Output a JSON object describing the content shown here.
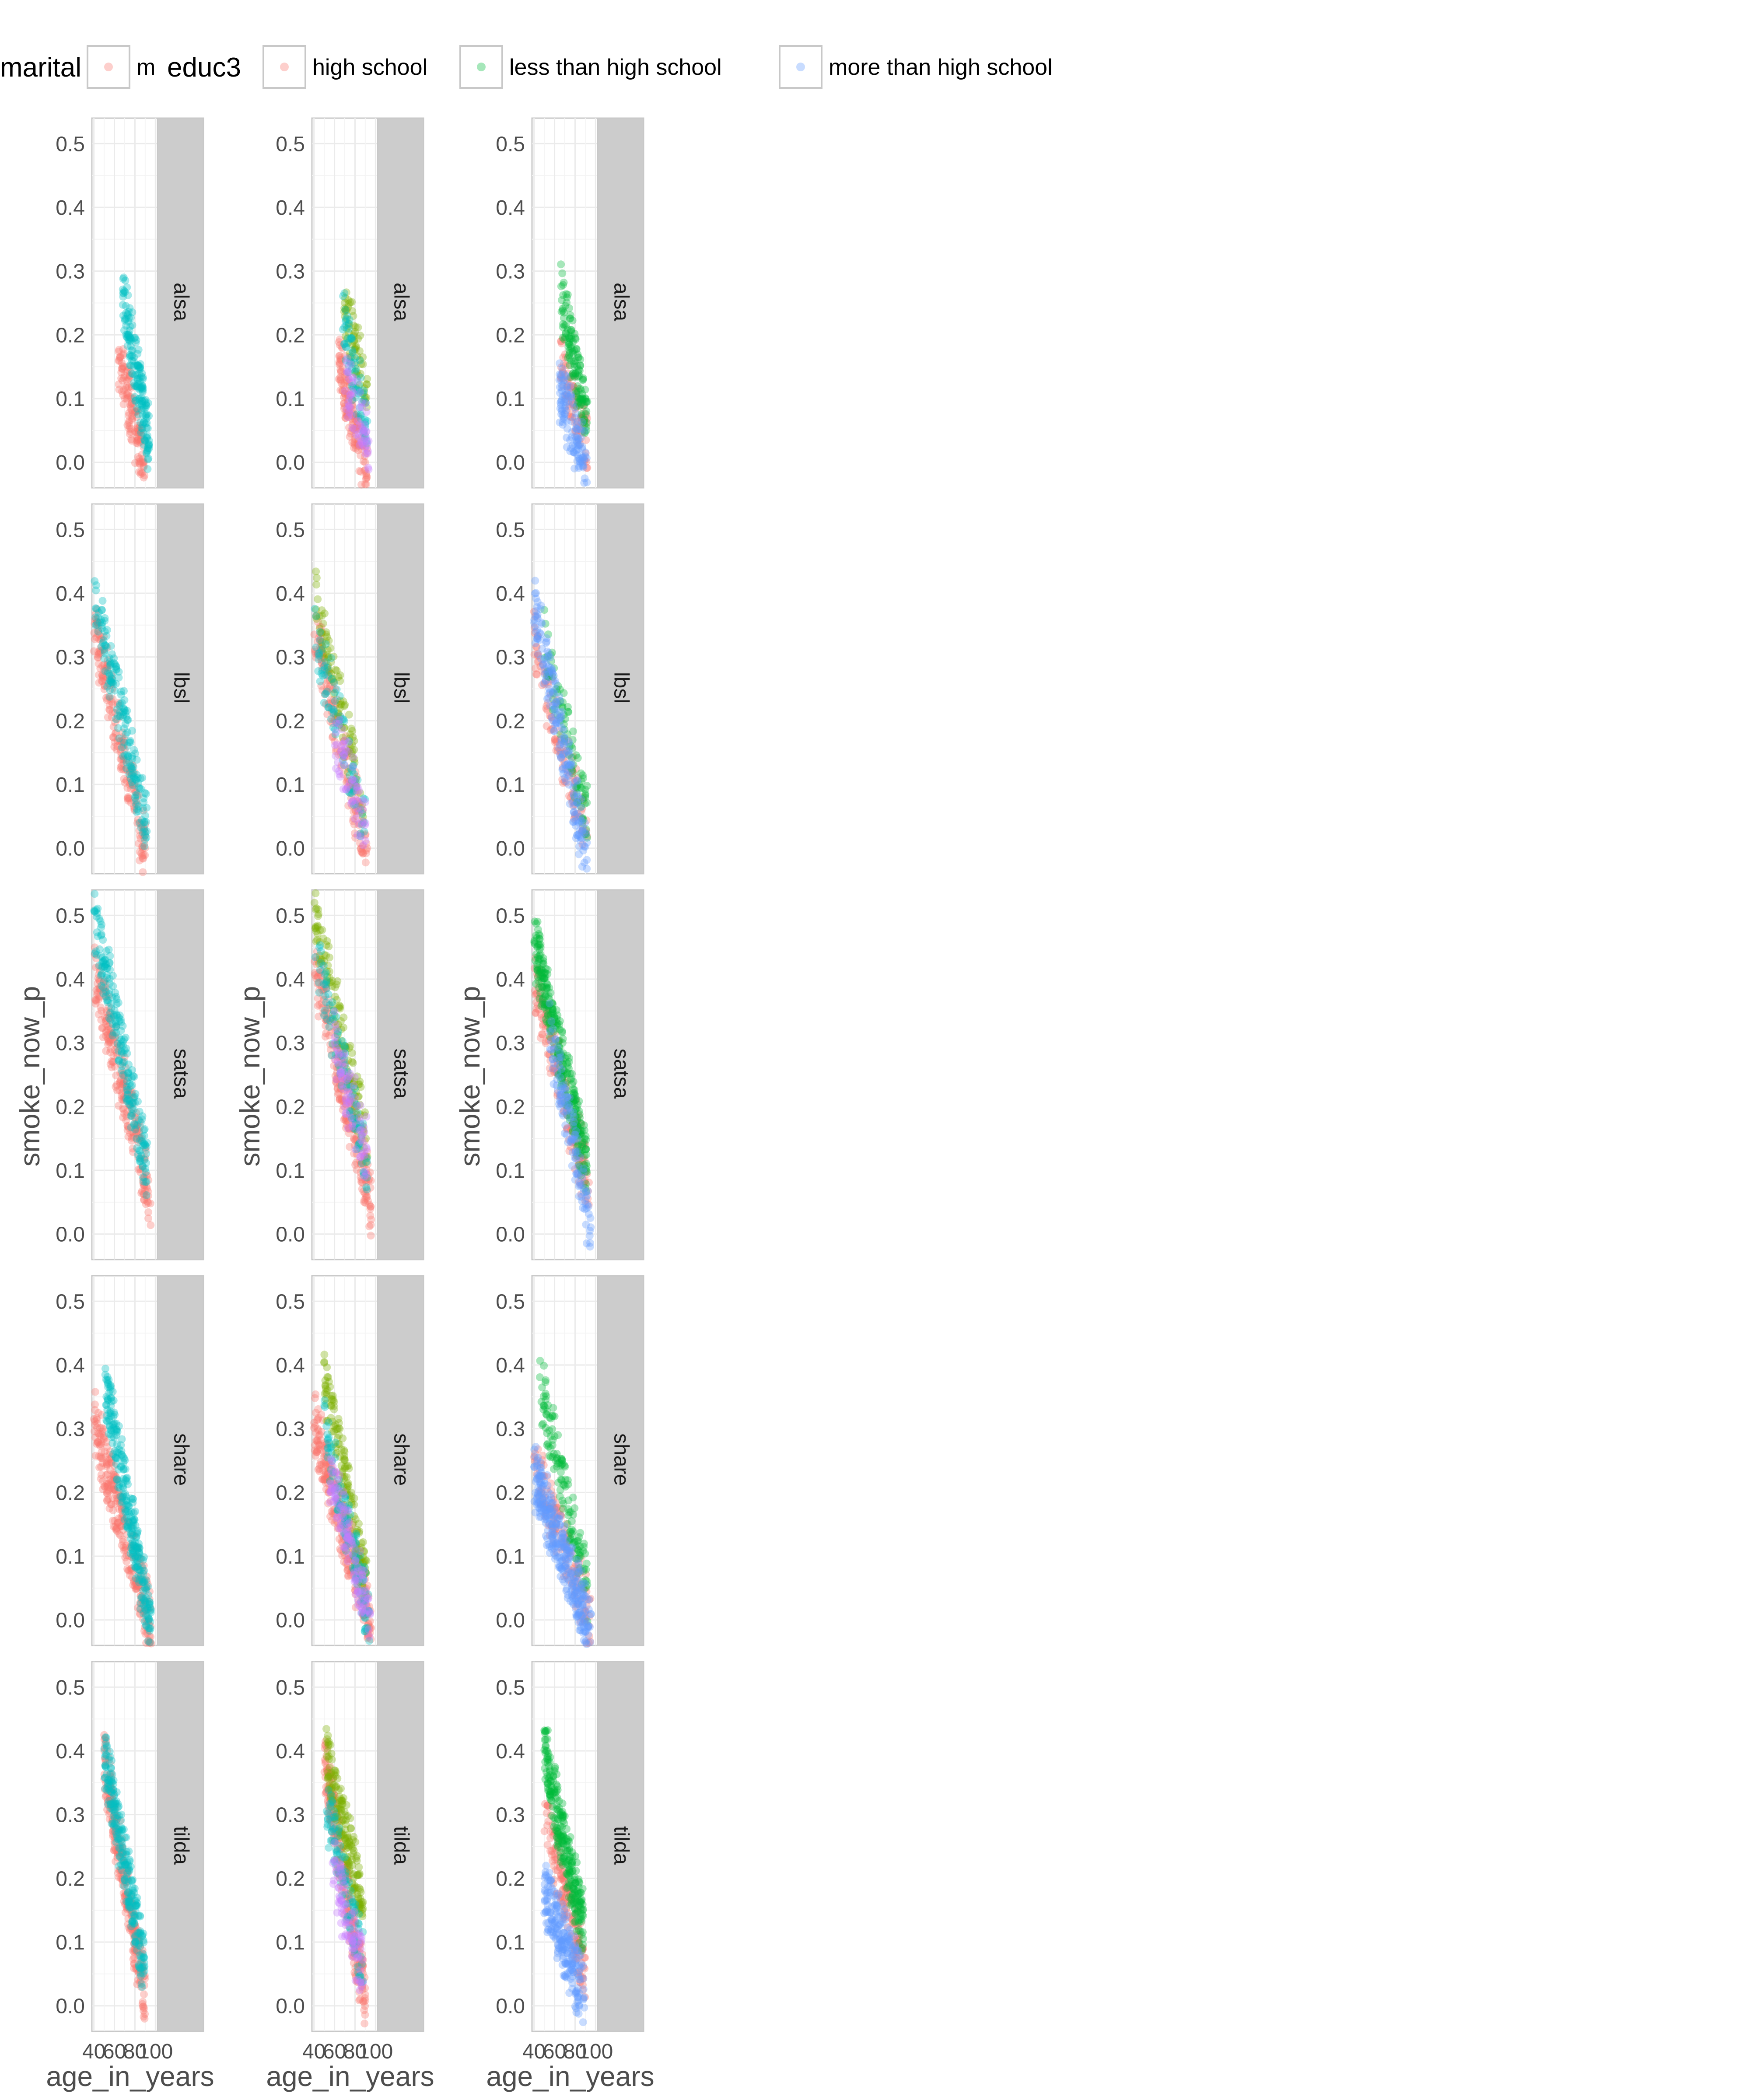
{
  "legend": {
    "groups": [
      {
        "title": "marital",
        "items": [
          {
            "label": "m",
            "color": "#F8766D"
          }
        ]
      },
      {
        "title": "educ3",
        "items": [
          {
            "label": "high school",
            "color": "#F8766D"
          },
          {
            "label": "less than high school",
            "color": "#00BA38"
          },
          {
            "label": "more than high school",
            "color": "#619CFF"
          }
        ]
      }
    ]
  },
  "chart_data": {
    "type": "scatter",
    "layout": "faceted grid, 5 rows (study) x 3 columns",
    "xlabel": "age_in_years",
    "ylabel": "smoke_now_p",
    "x_ticks": [
      40,
      60,
      80,
      100
    ],
    "x_tick_labels": [
      "40",
      "60",
      "80",
      "100"
    ],
    "xlim": [
      38,
      102
    ],
    "ylim": [
      -0.04,
      0.54
    ],
    "y_ticks": [
      0.0,
      0.1,
      0.2,
      0.3,
      0.4,
      0.5
    ],
    "y_tick_labels": [
      "0.0",
      "0.1",
      "0.2",
      "0.3",
      "0.4",
      "0.5"
    ],
    "grid": true,
    "point_alpha": 0.35,
    "facet_labels": [
      "alsa",
      "lbsl",
      "satsa",
      "share",
      "tilda"
    ],
    "columns": [
      {
        "color_var": "marital (single category visible)",
        "groups": [
          {
            "name": "",
            "color": "#F8766D"
          },
          {
            "name": "",
            "color": "#00BFC4"
          }
        ]
      },
      {
        "color_var": "four color groups",
        "groups": [
          {
            "name": "",
            "color": "#F8766D"
          },
          {
            "name": "",
            "color": "#7CAE00"
          },
          {
            "name": "",
            "color": "#00BFC4"
          },
          {
            "name": "",
            "color": "#C77CFF"
          }
        ]
      },
      {
        "color_var": "educ3",
        "groups": [
          {
            "name": "high school",
            "color": "#F8766D"
          },
          {
            "name": "less than high school",
            "color": "#00BA38"
          },
          {
            "name": "more than high school",
            "color": "#619CFF"
          }
        ]
      }
    ],
    "panels": {
      "alsa": [
        [
          {
            "x_range": [
              64,
              92
            ],
            "y_top": 0.16,
            "y_bottom": -0.02,
            "n": 130
          },
          {
            "x_range": [
              68,
              94
            ],
            "y_top": 0.26,
            "y_bottom": 0.03,
            "n": 170
          }
        ],
        [
          {
            "x_range": [
              64,
              92
            ],
            "y_top": 0.16,
            "y_bottom": -0.02,
            "n": 140
          },
          {
            "x_range": [
              68,
              92
            ],
            "y_top": 0.26,
            "y_bottom": 0.1,
            "n": 70
          },
          {
            "x_range": [
              68,
              92
            ],
            "y_top": 0.22,
            "y_bottom": 0.05,
            "n": 70
          },
          {
            "x_range": [
              70,
              94
            ],
            "y_top": 0.14,
            "y_bottom": 0.02,
            "n": 60
          }
        ],
        [
          {
            "x_range": [
              66,
              92
            ],
            "y_top": 0.16,
            "y_bottom": 0.03,
            "n": 90
          },
          {
            "x_range": [
              66,
              92
            ],
            "y_top": 0.26,
            "y_bottom": 0.07,
            "n": 130
          },
          {
            "x_range": [
              64,
              92
            ],
            "y_top": 0.12,
            "y_bottom": -0.01,
            "n": 120
          }
        ]
      ],
      "lbsl": [
        [
          {
            "x_range": [
              40,
              92
            ],
            "y_top": 0.35,
            "y_bottom": -0.02,
            "n": 190
          },
          {
            "x_range": [
              40,
              92
            ],
            "y_top": 0.4,
            "y_bottom": 0.03,
            "n": 170
          }
        ],
        [
          {
            "x_range": [
              40,
              92
            ],
            "y_top": 0.35,
            "y_bottom": -0.02,
            "n": 160
          },
          {
            "x_range": [
              40,
              88
            ],
            "y_top": 0.4,
            "y_bottom": 0.07,
            "n": 90
          },
          {
            "x_range": [
              40,
              90
            ],
            "y_top": 0.35,
            "y_bottom": 0.03,
            "n": 80
          },
          {
            "x_range": [
              60,
              92
            ],
            "y_top": 0.18,
            "y_bottom": 0.03,
            "n": 60
          }
        ],
        [
          {
            "x_range": [
              40,
              92
            ],
            "y_top": 0.32,
            "y_bottom": 0.01,
            "n": 120
          },
          {
            "x_range": [
              50,
              92
            ],
            "y_top": 0.32,
            "y_bottom": 0.05,
            "n": 90
          },
          {
            "x_range": [
              40,
              92
            ],
            "y_top": 0.38,
            "y_bottom": -0.02,
            "n": 190
          }
        ]
      ],
      "satsa": [
        [
          {
            "x_range": [
              40,
              96
            ],
            "y_top": 0.42,
            "y_bottom": 0.05,
            "n": 230
          },
          {
            "x_range": [
              40,
              92
            ],
            "y_top": 0.5,
            "y_bottom": 0.1,
            "n": 200
          }
        ],
        [
          {
            "x_range": [
              40,
              96
            ],
            "y_top": 0.42,
            "y_bottom": 0.05,
            "n": 230
          },
          {
            "x_range": [
              40,
              92
            ],
            "y_top": 0.5,
            "y_bottom": 0.15,
            "n": 120
          },
          {
            "x_range": [
              40,
              92
            ],
            "y_top": 0.45,
            "y_bottom": 0.1,
            "n": 90
          },
          {
            "x_range": [
              60,
              92
            ],
            "y_top": 0.3,
            "y_bottom": 0.12,
            "n": 70
          }
        ],
        [
          {
            "x_range": [
              40,
              94
            ],
            "y_top": 0.4,
            "y_bottom": 0.07,
            "n": 180
          },
          {
            "x_range": [
              40,
              92
            ],
            "y_top": 0.46,
            "y_bottom": 0.1,
            "n": 300
          },
          {
            "x_range": [
              55,
              96
            ],
            "y_top": 0.32,
            "y_bottom": 0.0,
            "n": 120
          }
        ]
      ],
      "share": [
        [
          {
            "x_range": [
              40,
              96
            ],
            "y_top": 0.31,
            "y_bottom": -0.01,
            "n": 260
          },
          {
            "x_range": [
              50,
              96
            ],
            "y_top": 0.38,
            "y_bottom": -0.02,
            "n": 260
          }
        ],
        [
          {
            "x_range": [
              40,
              96
            ],
            "y_top": 0.31,
            "y_bottom": -0.01,
            "n": 260
          },
          {
            "x_range": [
              50,
              92
            ],
            "y_top": 0.38,
            "y_bottom": 0.04,
            "n": 150
          },
          {
            "x_range": [
              50,
              94
            ],
            "y_top": 0.3,
            "y_bottom": 0.0,
            "n": 120
          },
          {
            "x_range": [
              55,
              96
            ],
            "y_top": 0.23,
            "y_bottom": -0.01,
            "n": 110
          }
        ],
        [
          {
            "x_range": [
              40,
              96
            ],
            "y_top": 0.26,
            "y_bottom": -0.01,
            "n": 140
          },
          {
            "x_range": [
              45,
              92
            ],
            "y_top": 0.38,
            "y_bottom": 0.05,
            "n": 130
          },
          {
            "x_range": [
              40,
              96
            ],
            "y_top": 0.23,
            "y_bottom": -0.02,
            "n": 320
          }
        ]
      ],
      "tilda": [
        [
          {
            "x_range": [
              50,
              90
            ],
            "y_top": 0.38,
            "y_bottom": 0.01,
            "n": 260
          },
          {
            "x_range": [
              50,
              90
            ],
            "y_top": 0.4,
            "y_bottom": 0.05,
            "n": 230
          }
        ],
        [
          {
            "x_range": [
              50,
              90
            ],
            "y_top": 0.38,
            "y_bottom": 0.01,
            "n": 260
          },
          {
            "x_range": [
              52,
              88
            ],
            "y_top": 0.4,
            "y_bottom": 0.15,
            "n": 170
          },
          {
            "x_range": [
              52,
              88
            ],
            "y_top": 0.32,
            "y_bottom": 0.07,
            "n": 100
          },
          {
            "x_range": [
              58,
              88
            ],
            "y_top": 0.22,
            "y_bottom": 0.05,
            "n": 80
          }
        ],
        [
          {
            "x_range": [
              50,
              90
            ],
            "y_top": 0.3,
            "y_bottom": 0.05,
            "n": 160
          },
          {
            "x_range": [
              50,
              88
            ],
            "y_top": 0.4,
            "y_bottom": 0.12,
            "n": 260
          },
          {
            "x_range": [
              50,
              90
            ],
            "y_top": 0.18,
            "y_bottom": 0.01,
            "n": 220
          }
        ]
      ]
    }
  }
}
